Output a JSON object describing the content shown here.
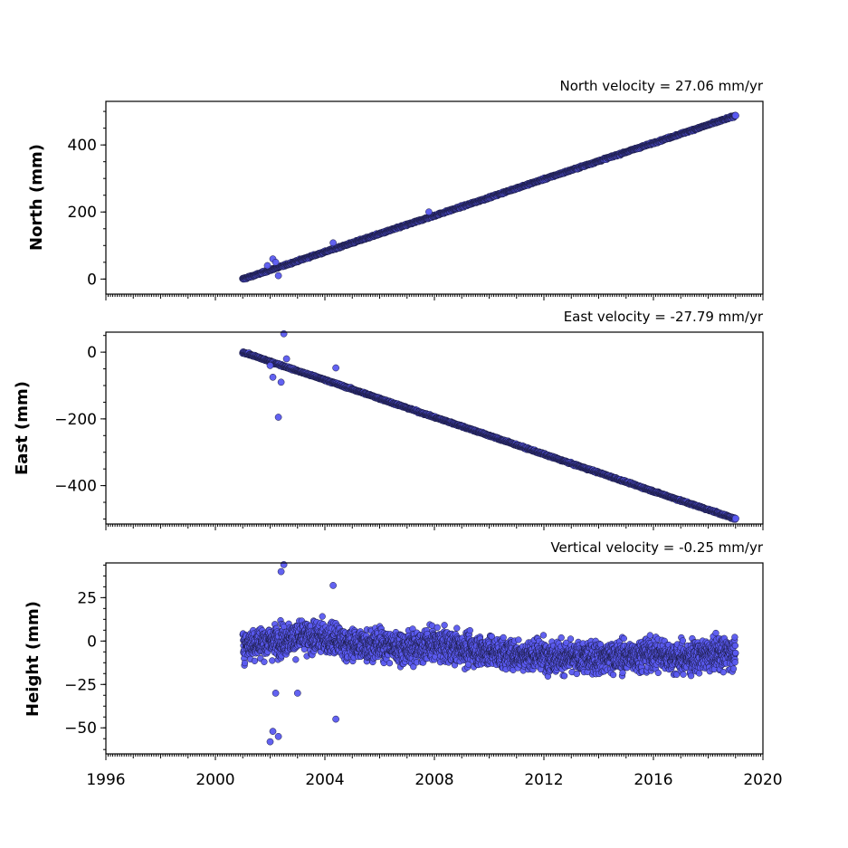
{
  "chart_data": [
    {
      "type": "scatter",
      "title": "North velocity = 27.06 mm/yr",
      "ylabel": "North (mm)",
      "xlim": [
        1996,
        2020
      ],
      "ylim": [
        -45,
        530
      ],
      "yticks": [
        0,
        200,
        400
      ],
      "ytick_labels": [
        "0",
        "200",
        "400"
      ],
      "velocity_mm_per_yr": 27.06,
      "series": [
        {
          "x": [
            2001.0,
            2001.5,
            2002.0,
            2002.5,
            2003.0,
            2004.0,
            2005.0,
            2006.0,
            2007.0,
            2008.0,
            2009.0,
            2010.0,
            2011.0,
            2012.0,
            2013.0,
            2014.0,
            2015.0,
            2016.0,
            2017.0,
            2018.0,
            2019.0
          ],
          "y": [
            0,
            13,
            27,
            40,
            54,
            81,
            108,
            135,
            162,
            189,
            216,
            243,
            271,
            298,
            325,
            352,
            379,
            406,
            433,
            460,
            487
          ]
        },
        {
          "x": [
            2001.9,
            2002.1,
            2002.2,
            2002.3,
            2004.3,
            2007.8
          ],
          "y": [
            40,
            60,
            50,
            10,
            108,
            200
          ]
        }
      ]
    },
    {
      "type": "scatter",
      "title": "East velocity = -27.79 mm/yr",
      "ylabel": "East (mm)",
      "xlim": [
        1996,
        2020
      ],
      "ylim": [
        -515,
        60
      ],
      "yticks": [
        0,
        -200,
        -400
      ],
      "ytick_labels": [
        "0",
        "−200",
        "−400"
      ],
      "velocity_mm_per_yr": -27.79,
      "series": [
        {
          "x": [
            2001.0,
            2001.5,
            2002.0,
            2002.5,
            2003.0,
            2004.0,
            2005.0,
            2006.0,
            2007.0,
            2008.0,
            2009.0,
            2010.0,
            2011.0,
            2012.0,
            2013.0,
            2014.0,
            2015.0,
            2016.0,
            2017.0,
            2018.0,
            2019.0
          ],
          "y": [
            0,
            -14,
            -28,
            -42,
            -56,
            -83,
            -111,
            -139,
            -167,
            -195,
            -222,
            -250,
            -278,
            -306,
            -334,
            -361,
            -389,
            -417,
            -445,
            -472,
            -500
          ]
        },
        {
          "x": [
            2002.0,
            2002.1,
            2002.3,
            2002.4,
            2002.5,
            2002.6,
            2004.4
          ],
          "y": [
            -40,
            -75,
            -195,
            -90,
            55,
            -20,
            -47
          ]
        }
      ]
    },
    {
      "type": "scatter",
      "title": "Vertical velocity = -0.25 mm/yr",
      "ylabel": "Height (mm)",
      "xlim": [
        1996,
        2020
      ],
      "ylim": [
        -65,
        45
      ],
      "yticks": [
        25,
        0,
        -25,
        -50
      ],
      "ytick_labels": [
        "25",
        "0",
        "−25",
        "−50"
      ],
      "xticks": [
        1996,
        2000,
        2004,
        2008,
        2012,
        2016,
        2020
      ],
      "xtick_labels": [
        "1996",
        "2000",
        "2004",
        "2008",
        "2012",
        "2016",
        "2020"
      ],
      "velocity_mm_per_yr": -0.25,
      "series": [
        {
          "x": [
            2001.0,
            2002.0,
            2003.0,
            2004.0,
            2005.0,
            2006.0,
            2007.0,
            2008.0,
            2009.0,
            2010.0,
            2011.0,
            2012.0,
            2013.0,
            2014.0,
            2015.0,
            2016.0,
            2017.0,
            2018.0,
            2019.0
          ],
          "y_center": [
            -2,
            0,
            2,
            2,
            -2,
            -2,
            -4,
            -2,
            -4,
            -6,
            -8,
            -8,
            -10,
            -9,
            -9,
            -7,
            -10,
            -8,
            -6
          ],
          "y_spread": 20
        },
        {
          "x": [
            2002.0,
            2002.1,
            2002.2,
            2002.3,
            2002.4,
            2002.5,
            2003.0,
            2004.3,
            2004.4
          ],
          "y": [
            -58,
            -52,
            -30,
            -55,
            40,
            44,
            -30,
            32,
            -45
          ]
        }
      ]
    }
  ]
}
